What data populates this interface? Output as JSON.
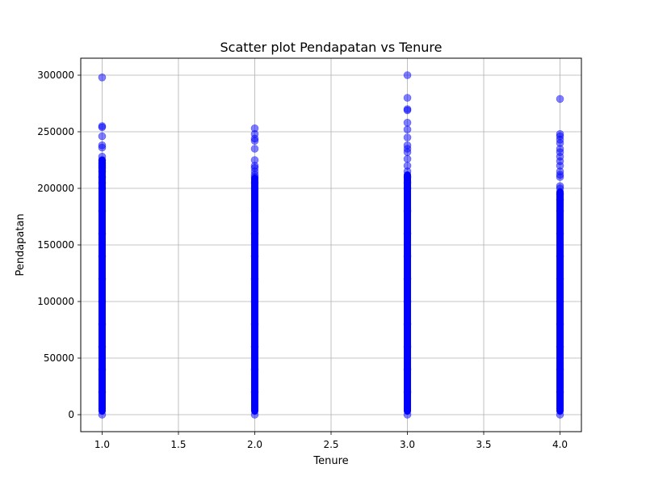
{
  "chart_data": {
    "type": "scatter",
    "title": "Scatter plot Pendapatan vs Tenure",
    "xlabel": "Tenure",
    "ylabel": "Pendapatan",
    "xlim": [
      0.86,
      4.14
    ],
    "ylim": [
      -15000,
      315000
    ],
    "xticks": [
      1.0,
      1.5,
      2.0,
      2.5,
      3.0,
      3.5,
      4.0
    ],
    "xtick_labels": [
      "1.0",
      "1.5",
      "2.0",
      "2.5",
      "3.0",
      "3.5",
      "4.0"
    ],
    "yticks": [
      0,
      50000,
      100000,
      150000,
      200000,
      250000,
      300000
    ],
    "ytick_labels": [
      "0",
      "50000",
      "100000",
      "150000",
      "200000",
      "250000",
      "300000"
    ],
    "grid": true,
    "color": "#0000ff",
    "series": [
      {
        "x": 1,
        "dense_range": [
          0,
          228000
        ],
        "points": [
          0,
          20000,
          40000,
          60000,
          80000,
          100000,
          120000,
          140000,
          160000,
          180000,
          200000,
          205000,
          210000,
          215000,
          218000,
          220000,
          222000,
          225000,
          228000,
          236000,
          238000,
          246000,
          254000,
          255000,
          298000
        ]
      },
      {
        "x": 2,
        "dense_range": [
          0,
          212000
        ],
        "points": [
          0,
          20000,
          40000,
          60000,
          80000,
          100000,
          120000,
          140000,
          160000,
          180000,
          200000,
          205000,
          210000,
          212000,
          215000,
          218000,
          220000,
          225000,
          235000,
          242000,
          244000,
          248000,
          253000
        ]
      },
      {
        "x": 3,
        "dense_range": [
          0,
          215000
        ],
        "points": [
          0,
          20000,
          40000,
          60000,
          80000,
          100000,
          120000,
          140000,
          160000,
          180000,
          200000,
          205000,
          210000,
          215000,
          220000,
          226000,
          232000,
          235000,
          238000,
          245000,
          252000,
          258000,
          269000,
          270000,
          280000,
          300000
        ]
      },
      {
        "x": 4,
        "dense_range": [
          0,
          200000
        ],
        "points": [
          0,
          20000,
          40000,
          60000,
          80000,
          100000,
          120000,
          140000,
          160000,
          180000,
          190000,
          195000,
          200000,
          202000,
          210000,
          212000,
          215000,
          220000,
          224000,
          228000,
          232000,
          235000,
          240000,
          243000,
          246000,
          248000,
          279000
        ]
      }
    ]
  }
}
